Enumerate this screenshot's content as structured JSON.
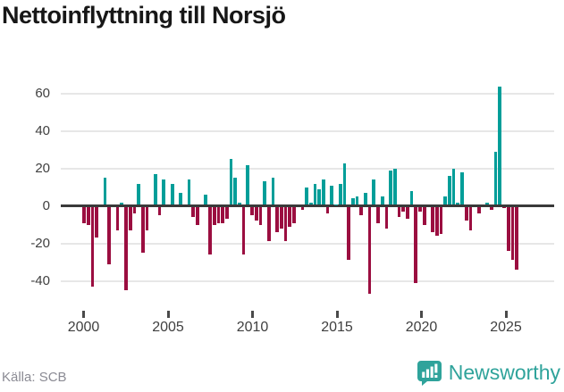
{
  "title": "Nettoinflyttning till Norsjö",
  "footer": {
    "source": "Källa: SCB",
    "brand": "Newsworthy",
    "brand_icon": "newsworthy-speech-bubble-bar-chart-icon",
    "brand_color": "#2fa39b"
  },
  "chart_data": {
    "type": "bar",
    "title": "Nettoinflyttning till Norsjö",
    "frequency": "quarterly",
    "start_period": "2000Q1",
    "end_period": "2025Q4",
    "values": [
      -9,
      -10,
      -43,
      -17,
      0,
      15,
      -31,
      0,
      -13,
      2,
      -45,
      -13,
      -4,
      12,
      -25,
      -13,
      0,
      17,
      -5,
      14,
      0,
      12,
      0,
      7,
      0,
      14,
      -6,
      -10,
      0,
      6,
      -26,
      -10,
      -9,
      -9,
      -7,
      25,
      15,
      2,
      -26,
      22,
      -5,
      -8,
      -10,
      13,
      -19,
      15,
      -14,
      -12,
      -19,
      -11,
      -9,
      0,
      -2,
      10,
      2,
      12,
      9,
      14,
      -4,
      11,
      1,
      12,
      23,
      -29,
      4,
      5,
      -5,
      7,
      -47,
      14,
      -9,
      5,
      -12,
      19,
      20,
      -6,
      -3,
      -7,
      8,
      -41,
      -3,
      -10,
      0,
      -14,
      -16,
      -15,
      5,
      16,
      20,
      2,
      18,
      -8,
      -13,
      0,
      -4,
      0,
      2,
      -2,
      29,
      64,
      -1,
      -24,
      -29,
      -34
    ],
    "x_tick_labels": [
      "2000",
      "2005",
      "2010",
      "2015",
      "2020",
      "2025"
    ],
    "x_tick_start_year": 2000,
    "x_tick_step_years": 5,
    "y_tick_labels": [
      60,
      40,
      20,
      0,
      -20,
      -40
    ],
    "ylim": [
      -50,
      68
    ],
    "grid": "horizontal",
    "legend": "none",
    "positive_color": "#009e99",
    "negative_color": "#9b0e40",
    "gridline_color": "#e7e7e7",
    "zeroline_color": "#3a3a3a"
  }
}
